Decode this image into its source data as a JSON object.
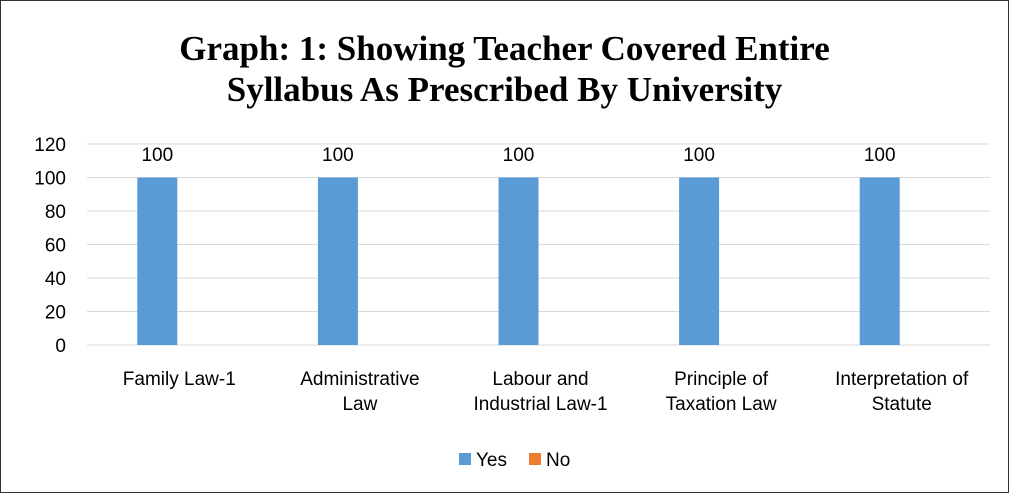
{
  "chart_data": {
    "type": "bar",
    "title_lines": [
      "Graph: 1: Showing Teacher Covered Entire",
      "Syllabus As Prescribed By University"
    ],
    "categories": [
      [
        "Family Law-1"
      ],
      [
        "Administrative",
        "Law"
      ],
      [
        "Labour and",
        "Industrial Law-1"
      ],
      [
        "Principle of",
        "Taxation Law"
      ],
      [
        "Interpretation of",
        "Statute"
      ]
    ],
    "series": [
      {
        "name": "Yes",
        "values": [
          100,
          100,
          100,
          100,
          100
        ],
        "color": "#5B9BD5"
      },
      {
        "name": "No",
        "values": [
          0,
          0,
          0,
          0,
          0
        ],
        "color": "#ED7D31"
      }
    ],
    "data_labels": [
      "100",
      "100",
      "100",
      "100",
      "100"
    ],
    "ylim": [
      0,
      120
    ],
    "yticks": [
      0,
      20,
      40,
      60,
      80,
      100,
      120
    ],
    "grid": true,
    "legend_position": "bottom"
  }
}
